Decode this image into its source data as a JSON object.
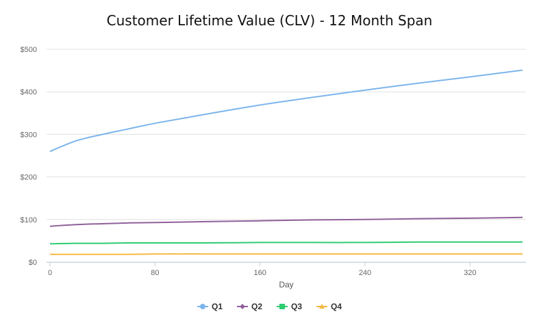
{
  "chart_data": {
    "type": "line",
    "title": "Customer Lifetime Value (CLV) - 12 Month Span",
    "xlabel": "Day",
    "ylabel": "",
    "xlim": [
      0,
      360
    ],
    "ylim": [
      0,
      500
    ],
    "x_ticks": [
      0,
      80,
      160,
      240,
      320
    ],
    "y_ticks": [
      0,
      100,
      200,
      300,
      400,
      500
    ],
    "y_tick_labels": [
      "$0",
      "$100",
      "$200",
      "$300",
      "$400",
      "$500"
    ],
    "grid": true,
    "legend_position": "bottom",
    "x": [
      0,
      20,
      40,
      60,
      80,
      120,
      160,
      200,
      240,
      280,
      320,
      360
    ],
    "series": [
      {
        "name": "Q1",
        "color": "#7cb5ec",
        "marker": "circle",
        "values": [
          260,
          285,
          300,
          313,
          326,
          348,
          369,
          387,
          404,
          420,
          435,
          451
        ]
      },
      {
        "name": "Q2",
        "color": "#90609a",
        "marker": "diamond",
        "values": [
          84,
          88,
          90,
          92,
          93,
          95,
          97,
          99,
          100,
          102,
          103,
          105
        ]
      },
      {
        "name": "Q3",
        "color": "#2ecc71",
        "marker": "square",
        "values": [
          43,
          44,
          44,
          45,
          45,
          45,
          46,
          46,
          46,
          47,
          47,
          47
        ]
      },
      {
        "name": "Q4",
        "color": "#f5b942",
        "marker": "triangle",
        "values": [
          18,
          18,
          18,
          18,
          19,
          19,
          19,
          19,
          19,
          19,
          19,
          19
        ]
      }
    ]
  }
}
